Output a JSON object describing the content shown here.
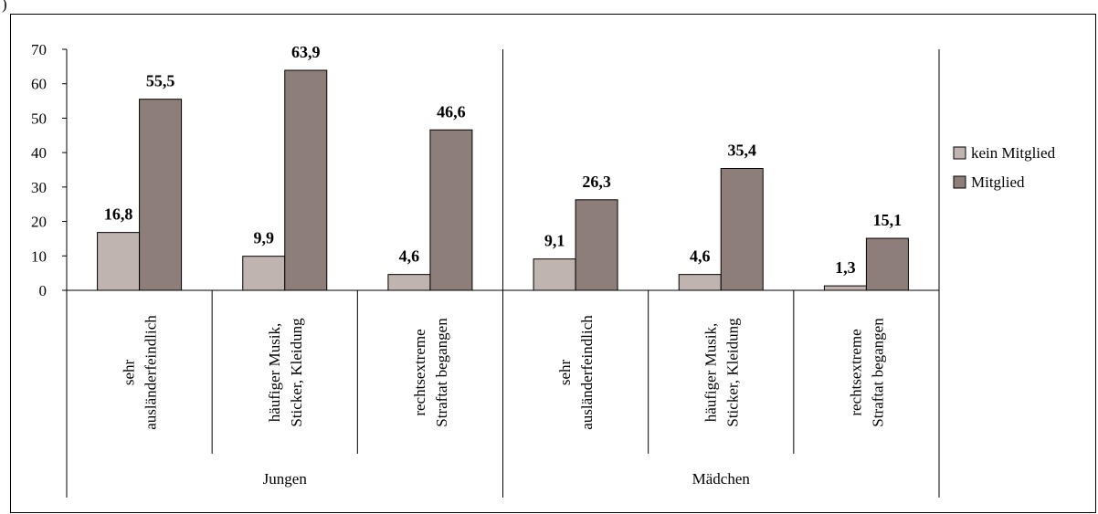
{
  "chart_data": {
    "type": "bar",
    "corner_label": ")",
    "ylim": [
      0,
      70
    ],
    "yticks": [
      0,
      10,
      20,
      30,
      40,
      50,
      60,
      70
    ],
    "groups": [
      {
        "label": "Jungen",
        "categories": [
          [
            "sehr",
            "ausländerfeindlich"
          ],
          [
            "häufiger Musik,",
            "Sticker, Kleidung"
          ],
          [
            "rechtsextreme",
            "Straftat begangen"
          ]
        ]
      },
      {
        "label": "Mädchen",
        "categories": [
          [
            "sehr",
            "ausländerfeindlich"
          ],
          [
            "häufiger Musik,",
            "Sticker, Kleidung"
          ],
          [
            "rechtsextreme",
            "Straftat begangen"
          ]
        ]
      }
    ],
    "series": [
      {
        "name": "kein Mitglied",
        "color": "#c0b4b1",
        "values": [
          16.8,
          9.9,
          4.6,
          9.1,
          4.6,
          1.3
        ],
        "labels": [
          "16,8",
          "9,9",
          "4,6",
          "9,1",
          "4,6",
          "1,3"
        ]
      },
      {
        "name": "Mitglied",
        "color": "#8e7e7a",
        "values": [
          55.5,
          63.9,
          46.6,
          26.3,
          35.4,
          15.1
        ],
        "labels": [
          "55,5",
          "63,9",
          "46,6",
          "26,3",
          "35,4",
          "15,1"
        ]
      }
    ],
    "grid": false,
    "legend_position": "right"
  }
}
